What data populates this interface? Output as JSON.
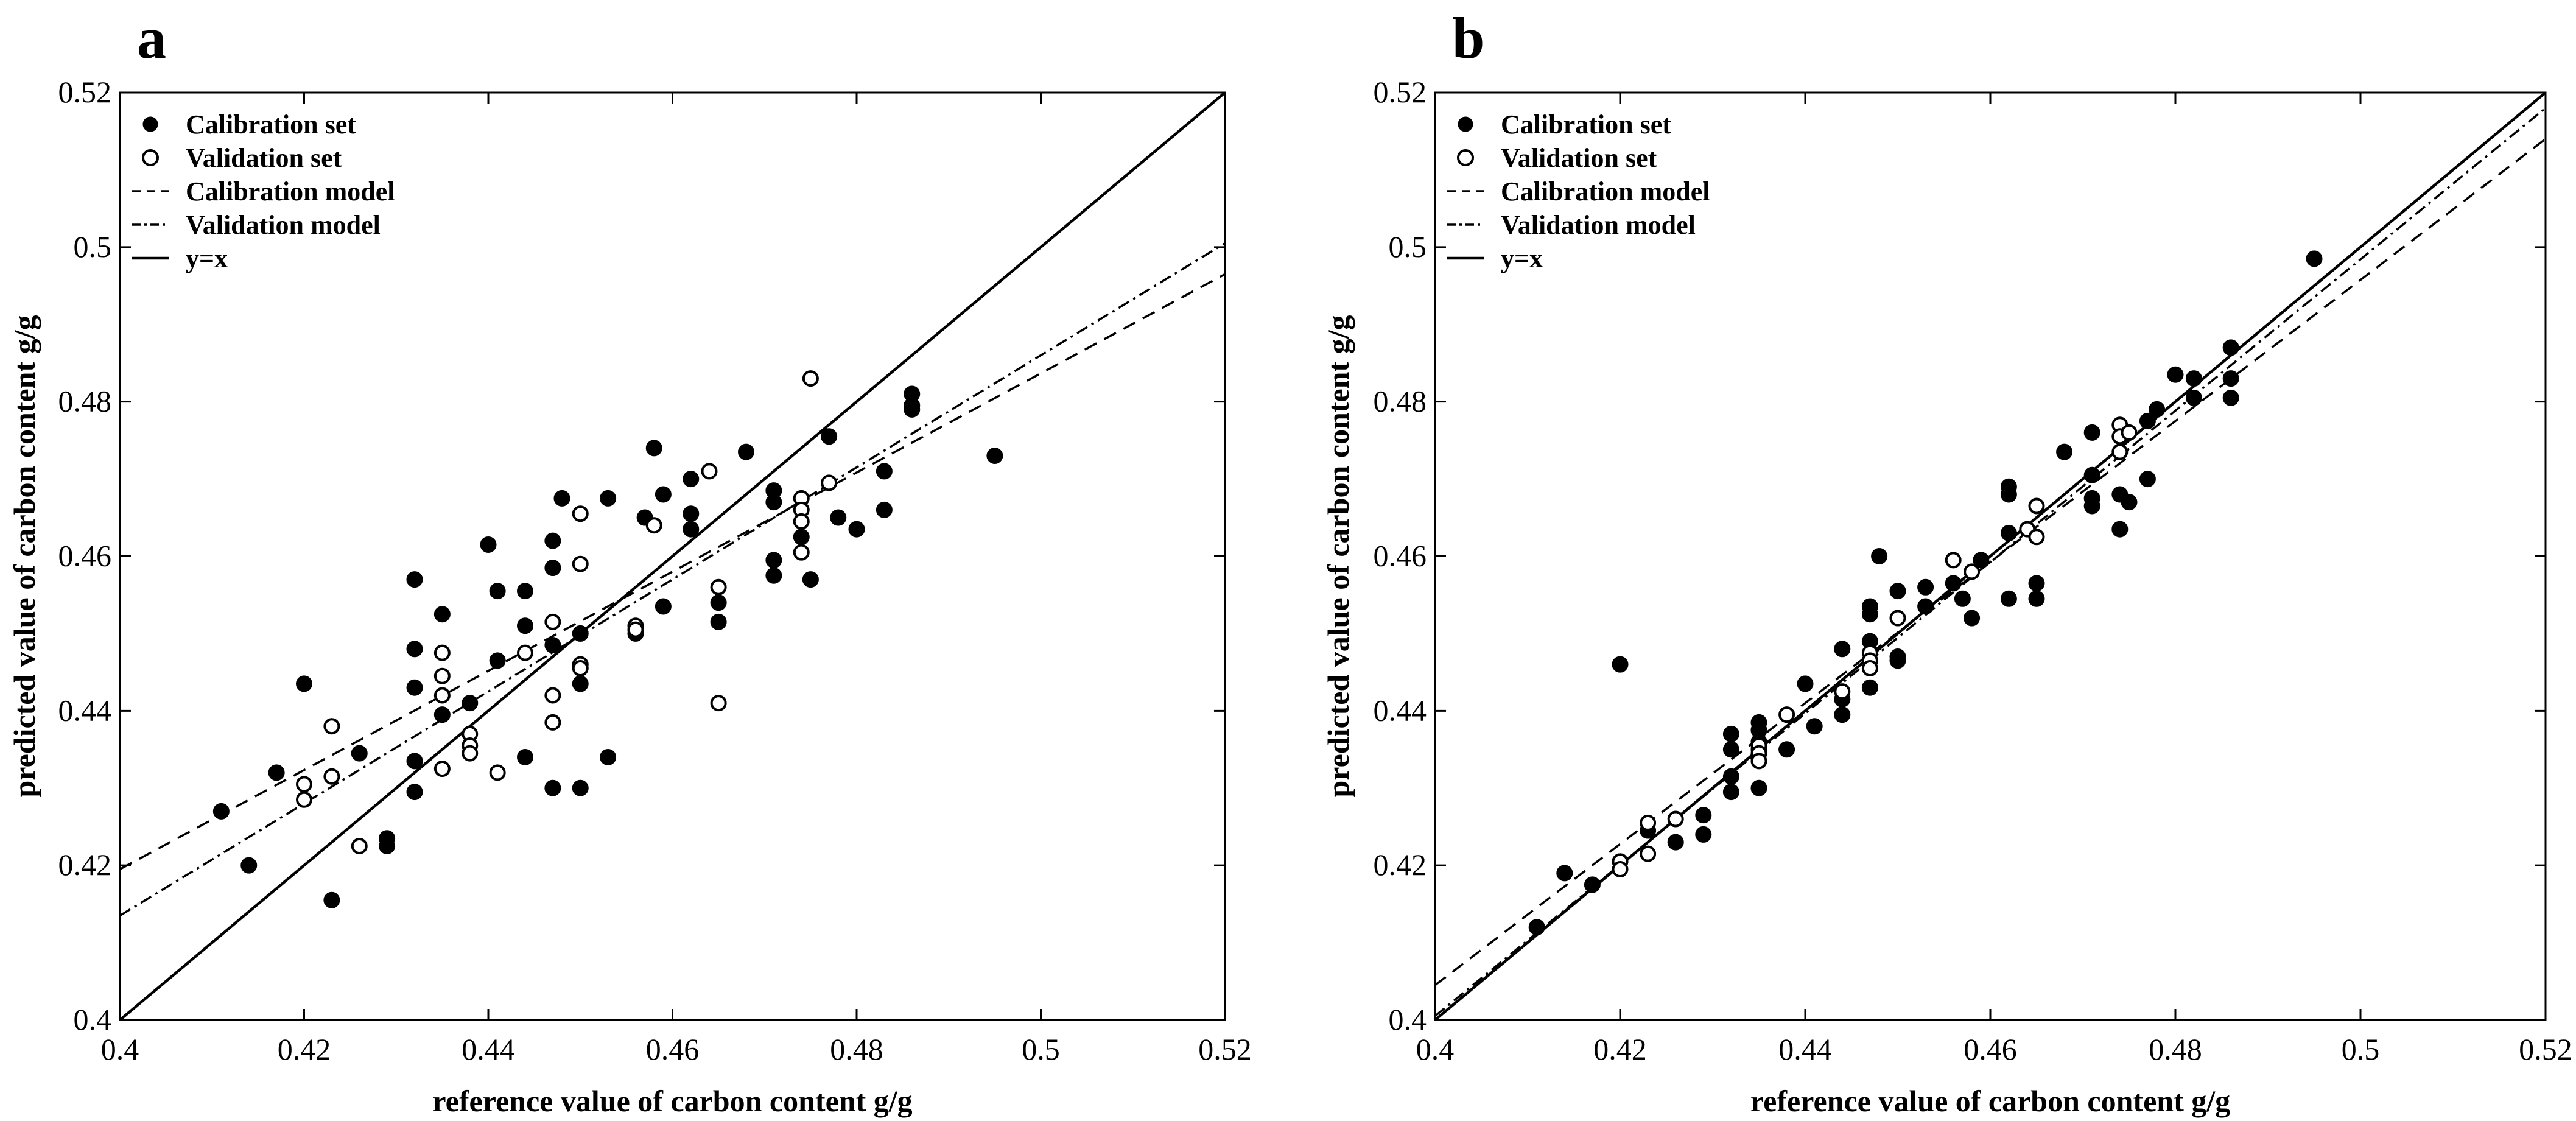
{
  "chart_data": [
    {
      "panel": "a",
      "type": "scatter",
      "xlabel": "reference value of carbon content g/g",
      "ylabel": "predicted value of carbon content g/g",
      "xlim": [
        0.4,
        0.52
      ],
      "ylim": [
        0.4,
        0.52
      ],
      "xticks": [
        0.4,
        0.42,
        0.44,
        0.46,
        0.48,
        0.5,
        0.52
      ],
      "xtick_labels": [
        "0.4",
        "0.42",
        "0.44",
        "0.46",
        "0.48",
        "0.5",
        "0.52"
      ],
      "yticks": [
        0.4,
        0.42,
        0.44,
        0.46,
        0.48,
        0.5,
        0.52
      ],
      "ytick_labels": [
        "0.4",
        "0.42",
        "0.44",
        "0.46",
        "0.48",
        "0.5",
        "0.52"
      ],
      "legend": [
        "Calibration set",
        "Validation set",
        "Calibration model",
        "Validation model",
        "y=x"
      ],
      "legend_location": "top-left",
      "series": [
        {
          "name": "Calibration set",
          "marker": "filled-circle",
          "points": [
            [
              0.411,
              0.427
            ],
            [
              0.414,
              0.42
            ],
            [
              0.417,
              0.432
            ],
            [
              0.42,
              0.4435
            ],
            [
              0.423,
              0.4155
            ],
            [
              0.426,
              0.4345
            ],
            [
              0.429,
              0.4235
            ],
            [
              0.429,
              0.4225
            ],
            [
              0.432,
              0.457
            ],
            [
              0.432,
              0.448
            ],
            [
              0.432,
              0.443
            ],
            [
              0.432,
              0.4335
            ],
            [
              0.432,
              0.4295
            ],
            [
              0.435,
              0.4525
            ],
            [
              0.435,
              0.4395
            ],
            [
              0.438,
              0.441
            ],
            [
              0.44,
              0.4615
            ],
            [
              0.441,
              0.4555
            ],
            [
              0.441,
              0.4465
            ],
            [
              0.444,
              0.4555
            ],
            [
              0.444,
              0.451
            ],
            [
              0.444,
              0.434
            ],
            [
              0.447,
              0.462
            ],
            [
              0.447,
              0.4585
            ],
            [
              0.447,
              0.4485
            ],
            [
              0.447,
              0.43
            ],
            [
              0.448,
              0.4675
            ],
            [
              0.45,
              0.45
            ],
            [
              0.45,
              0.4435
            ],
            [
              0.45,
              0.43
            ],
            [
              0.453,
              0.4675
            ],
            [
              0.453,
              0.434
            ],
            [
              0.456,
              0.45
            ],
            [
              0.457,
              0.465
            ],
            [
              0.458,
              0.474
            ],
            [
              0.459,
              0.468
            ],
            [
              0.459,
              0.4535
            ],
            [
              0.462,
              0.47
            ],
            [
              0.462,
              0.4655
            ],
            [
              0.462,
              0.4635
            ],
            [
              0.465,
              0.454
            ],
            [
              0.465,
              0.4515
            ],
            [
              0.468,
              0.4735
            ],
            [
              0.471,
              0.4685
            ],
            [
              0.471,
              0.467
            ],
            [
              0.471,
              0.4595
            ],
            [
              0.471,
              0.4575
            ],
            [
              0.474,
              0.4625
            ],
            [
              0.475,
              0.457
            ],
            [
              0.477,
              0.4755
            ],
            [
              0.478,
              0.465
            ],
            [
              0.48,
              0.4635
            ],
            [
              0.483,
              0.471
            ],
            [
              0.483,
              0.466
            ],
            [
              0.486,
              0.481
            ],
            [
              0.486,
              0.4795
            ],
            [
              0.486,
              0.479
            ],
            [
              0.495,
              0.473
            ]
          ]
        },
        {
          "name": "Validation set",
          "marker": "open-circle",
          "points": [
            [
              0.42,
              0.4305
            ],
            [
              0.42,
              0.4285
            ],
            [
              0.423,
              0.438
            ],
            [
              0.423,
              0.4315
            ],
            [
              0.426,
              0.4225
            ],
            [
              0.435,
              0.4475
            ],
            [
              0.435,
              0.4445
            ],
            [
              0.435,
              0.442
            ],
            [
              0.435,
              0.4325
            ],
            [
              0.438,
              0.437
            ],
            [
              0.438,
              0.4355
            ],
            [
              0.438,
              0.4345
            ],
            [
              0.441,
              0.432
            ],
            [
              0.444,
              0.4475
            ],
            [
              0.447,
              0.4515
            ],
            [
              0.447,
              0.442
            ],
            [
              0.447,
              0.4385
            ],
            [
              0.45,
              0.4655
            ],
            [
              0.45,
              0.459
            ],
            [
              0.45,
              0.446
            ],
            [
              0.45,
              0.4455
            ],
            [
              0.456,
              0.451
            ],
            [
              0.456,
              0.4505
            ],
            [
              0.458,
              0.464
            ],
            [
              0.464,
              0.471
            ],
            [
              0.465,
              0.456
            ],
            [
              0.465,
              0.441
            ],
            [
              0.474,
              0.4675
            ],
            [
              0.474,
              0.466
            ],
            [
              0.474,
              0.4645
            ],
            [
              0.474,
              0.4605
            ],
            [
              0.475,
              0.483
            ],
            [
              0.477,
              0.4695
            ]
          ]
        },
        {
          "name": "Calibration model",
          "style": "dashed",
          "line": [
            [
              0.4,
              0.4195
            ],
            [
              0.52,
              0.4965
            ]
          ]
        },
        {
          "name": "Validation model",
          "style": "dash-dot",
          "line": [
            [
              0.4,
              0.4135
            ],
            [
              0.52,
              0.5005
            ]
          ]
        },
        {
          "name": "y=x",
          "style": "solid",
          "line": [
            [
              0.4,
              0.4
            ],
            [
              0.52,
              0.52
            ]
          ]
        }
      ]
    },
    {
      "panel": "b",
      "type": "scatter",
      "xlabel": "reference value of carbon content g/g",
      "ylabel": "predicted value of carbon content g/g",
      "xlim": [
        0.4,
        0.52
      ],
      "ylim": [
        0.4,
        0.52
      ],
      "xticks": [
        0.4,
        0.42,
        0.44,
        0.46,
        0.48,
        0.5,
        0.52
      ],
      "xtick_labels": [
        "0.4",
        "0.42",
        "0.44",
        "0.46",
        "0.48",
        "0.5",
        "0.52"
      ],
      "yticks": [
        0.4,
        0.42,
        0.44,
        0.46,
        0.48,
        0.5,
        0.52
      ],
      "ytick_labels": [
        "0.4",
        "0.42",
        "0.44",
        "0.46",
        "0.48",
        "0.5",
        "0.52"
      ],
      "legend": [
        "Calibration set",
        "Validation set",
        "Calibration model",
        "Validation model",
        "y=x"
      ],
      "legend_location": "top-left",
      "series": [
        {
          "name": "Calibration set",
          "marker": "filled-circle",
          "points": [
            [
              0.411,
              0.412
            ],
            [
              0.414,
              0.419
            ],
            [
              0.417,
              0.4175
            ],
            [
              0.42,
              0.446
            ],
            [
              0.42,
              0.4205
            ],
            [
              0.423,
              0.4245
            ],
            [
              0.426,
              0.423
            ],
            [
              0.429,
              0.4265
            ],
            [
              0.429,
              0.424
            ],
            [
              0.432,
              0.437
            ],
            [
              0.432,
              0.435
            ],
            [
              0.432,
              0.4315
            ],
            [
              0.432,
              0.4295
            ],
            [
              0.435,
              0.4385
            ],
            [
              0.435,
              0.4375
            ],
            [
              0.435,
              0.436
            ],
            [
              0.435,
              0.435
            ],
            [
              0.435,
              0.43
            ],
            [
              0.438,
              0.435
            ],
            [
              0.44,
              0.4435
            ],
            [
              0.441,
              0.438
            ],
            [
              0.444,
              0.448
            ],
            [
              0.444,
              0.4415
            ],
            [
              0.444,
              0.4395
            ],
            [
              0.447,
              0.4535
            ],
            [
              0.447,
              0.4525
            ],
            [
              0.447,
              0.449
            ],
            [
              0.447,
              0.443
            ],
            [
              0.448,
              0.46
            ],
            [
              0.45,
              0.4555
            ],
            [
              0.45,
              0.447
            ],
            [
              0.45,
              0.4465
            ],
            [
              0.453,
              0.456
            ],
            [
              0.453,
              0.4535
            ],
            [
              0.456,
              0.4565
            ],
            [
              0.457,
              0.4545
            ],
            [
              0.458,
              0.452
            ],
            [
              0.459,
              0.4595
            ],
            [
              0.462,
              0.469
            ],
            [
              0.462,
              0.468
            ],
            [
              0.462,
              0.463
            ],
            [
              0.462,
              0.4545
            ],
            [
              0.465,
              0.4565
            ],
            [
              0.465,
              0.4545
            ],
            [
              0.468,
              0.4735
            ],
            [
              0.471,
              0.476
            ],
            [
              0.471,
              0.4705
            ],
            [
              0.471,
              0.4675
            ],
            [
              0.471,
              0.4665
            ],
            [
              0.474,
              0.468
            ],
            [
              0.474,
              0.4635
            ],
            [
              0.475,
              0.467
            ],
            [
              0.477,
              0.4775
            ],
            [
              0.477,
              0.47
            ],
            [
              0.478,
              0.479
            ],
            [
              0.48,
              0.4835
            ],
            [
              0.482,
              0.4805
            ],
            [
              0.482,
              0.483
            ],
            [
              0.486,
              0.487
            ],
            [
              0.486,
              0.483
            ],
            [
              0.486,
              0.4805
            ],
            [
              0.495,
              0.4985
            ]
          ]
        },
        {
          "name": "Validation set",
          "marker": "open-circle",
          "points": [
            [
              0.42,
              0.4205
            ],
            [
              0.42,
              0.4195
            ],
            [
              0.423,
              0.4255
            ],
            [
              0.423,
              0.4215
            ],
            [
              0.426,
              0.426
            ],
            [
              0.435,
              0.4355
            ],
            [
              0.435,
              0.4345
            ],
            [
              0.435,
              0.4335
            ],
            [
              0.438,
              0.4395
            ],
            [
              0.444,
              0.4425
            ],
            [
              0.447,
              0.4475
            ],
            [
              0.447,
              0.4465
            ],
            [
              0.447,
              0.4455
            ],
            [
              0.45,
              0.452
            ],
            [
              0.456,
              0.4595
            ],
            [
              0.458,
              0.458
            ],
            [
              0.464,
              0.4635
            ],
            [
              0.465,
              0.4665
            ],
            [
              0.465,
              0.4625
            ],
            [
              0.474,
              0.477
            ],
            [
              0.474,
              0.4755
            ],
            [
              0.474,
              0.4735
            ],
            [
              0.475,
              0.476
            ]
          ]
        },
        {
          "name": "Calibration model",
          "style": "dashed",
          "line": [
            [
              0.4,
              0.4045
            ],
            [
              0.52,
              0.514
            ]
          ]
        },
        {
          "name": "Validation model",
          "style": "dash-dot",
          "line": [
            [
              0.4,
              0.4005
            ],
            [
              0.52,
              0.518
            ]
          ]
        },
        {
          "name": "y=x",
          "style": "solid",
          "line": [
            [
              0.4,
              0.4
            ],
            [
              0.52,
              0.52
            ]
          ]
        }
      ]
    }
  ]
}
